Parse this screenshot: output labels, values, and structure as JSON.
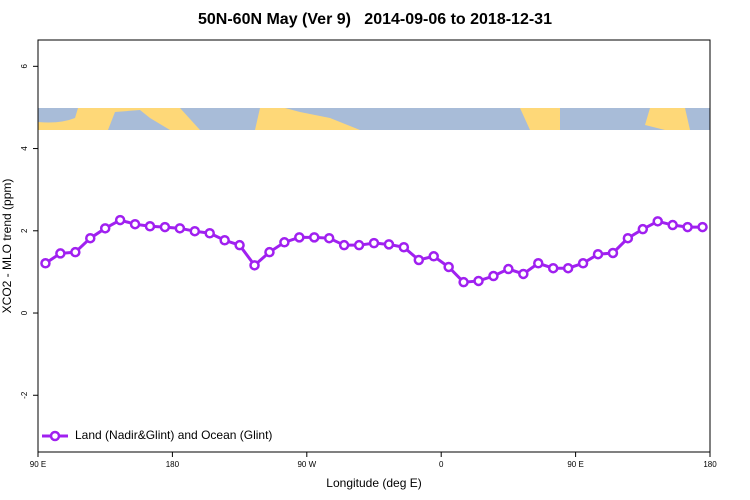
{
  "chart_data": {
    "type": "line",
    "title": "50N-60N May (Ver 9)   2014-09-06 to 2018-12-31",
    "x_label": "Longitude (deg E)",
    "y_label": "XCO2 - MLO trend (ppm)",
    "xlim": [
      90,
      540
    ],
    "ylim": [
      -3.38,
      6.64
    ],
    "xticks": [
      {
        "value": 90,
        "label": "90 E"
      },
      180,
      {
        "value": 270,
        "label": "90 W"
      },
      {
        "value": 360,
        "label": "0"
      },
      {
        "value": 450,
        "label": "90 E"
      },
      {
        "value": 540,
        "label": "180"
      }
    ],
    "yticks": [
      -2,
      0,
      2,
      4,
      6
    ],
    "legend": "bottom-left",
    "x": [
      95,
      105,
      115,
      125,
      135,
      145,
      155,
      165,
      175,
      185,
      195,
      205,
      215,
      225,
      235,
      245,
      255,
      265,
      275,
      285,
      295,
      305,
      315,
      325,
      335,
      345,
      355,
      365,
      375,
      385,
      395,
      405,
      415,
      425,
      435,
      445,
      455,
      465,
      475,
      485,
      495,
      505,
      515,
      525,
      535
    ],
    "series": [
      {
        "name": "Land (Nadir&Glint) and Ocean (Glint)",
        "color": "#a020f0",
        "values": [
          1.21,
          1.45,
          1.48,
          1.82,
          2.06,
          2.26,
          2.16,
          2.11,
          2.09,
          2.06,
          1.99,
          1.94,
          1.77,
          1.65,
          1.16,
          1.48,
          1.72,
          1.84,
          1.84,
          1.82,
          1.65,
          1.65,
          1.7,
          1.67,
          1.6,
          1.29,
          1.38,
          1.12,
          0.75,
          0.78,
          0.9,
          1.07,
          0.95,
          1.21,
          1.09,
          1.09,
          1.21,
          1.43,
          1.46,
          1.82,
          2.04,
          2.23,
          2.14,
          2.09,
          2.09
        ]
      }
    ]
  }
}
